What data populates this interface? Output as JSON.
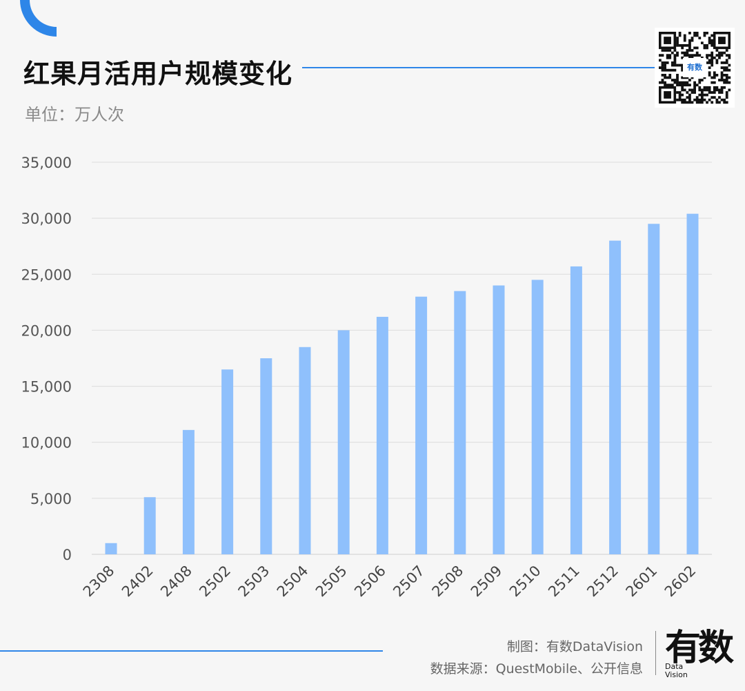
{
  "header": {
    "title": "红果月活用户规模变化",
    "unit": "单位：万人次"
  },
  "brand_colors": {
    "accent": "#2e86e8",
    "bar": "#8fc0fc"
  },
  "chart_data": {
    "type": "bar",
    "categories": [
      "2308",
      "2402",
      "2408",
      "2502",
      "2503",
      "2504",
      "2505",
      "2506",
      "2507",
      "2508",
      "2509",
      "2510",
      "2511",
      "2512",
      "2601",
      "2602"
    ],
    "values": [
      1000,
      5100,
      11100,
      16500,
      17500,
      18500,
      20000,
      21200,
      23000,
      23500,
      24000,
      24500,
      25700,
      28000,
      29500,
      30400
    ],
    "yticks": [
      "0",
      "5,000",
      "10,000",
      "15,000",
      "20,000",
      "25,000",
      "30,000",
      "35,000"
    ],
    "ylim": [
      0,
      35000
    ],
    "grid": true,
    "legend": "none"
  },
  "footer": {
    "credit": "制图：有数DataVision",
    "source": "数据来源：QuestMobile、公开信息",
    "logo_main": "有数",
    "logo_sub_1": "Data",
    "logo_sub_2": "Vision",
    "qr_label": "有数"
  }
}
